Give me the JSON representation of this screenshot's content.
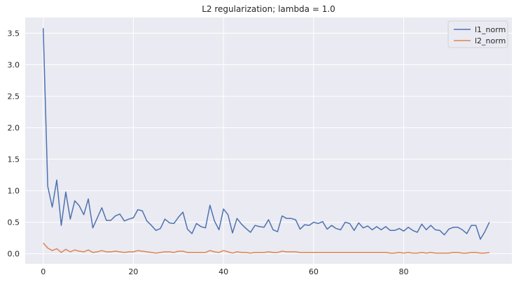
{
  "chart_data": {
    "type": "line",
    "title": "L2 regularization; lambda = 1.0",
    "xlabel": "",
    "ylabel": "",
    "xlim": [
      -4,
      104
    ],
    "ylim": [
      -0.16,
      3.75
    ],
    "x_ticks": [
      0,
      20,
      40,
      60,
      80
    ],
    "y_ticks": [
      0.0,
      0.5,
      1.0,
      1.5,
      2.0,
      2.5,
      3.0,
      3.5
    ],
    "x_tick_labels": [
      "0",
      "20",
      "40",
      "60",
      "80"
    ],
    "y_tick_labels": [
      "0.0",
      "0.5",
      "1.0",
      "1.5",
      "2.0",
      "2.5",
      "3.0",
      "3.5"
    ],
    "grid": true,
    "background": "#eaeaf2",
    "legend_position": "top-right",
    "x": [
      0,
      1,
      2,
      3,
      4,
      5,
      6,
      7,
      8,
      9,
      10,
      11,
      12,
      13,
      14,
      15,
      16,
      17,
      18,
      19,
      20,
      21,
      22,
      23,
      24,
      25,
      26,
      27,
      28,
      29,
      30,
      31,
      32,
      33,
      34,
      35,
      36,
      37,
      38,
      39,
      40,
      41,
      42,
      43,
      44,
      45,
      46,
      47,
      48,
      49,
      50,
      51,
      52,
      53,
      54,
      55,
      56,
      57,
      58,
      59,
      60,
      61,
      62,
      63,
      64,
      65,
      66,
      67,
      68,
      69,
      70,
      71,
      72,
      73,
      74,
      75,
      76,
      77,
      78,
      79,
      80,
      81,
      82,
      83,
      84,
      85,
      86,
      87,
      88,
      89,
      90,
      91,
      92,
      93,
      94,
      95,
      96,
      97,
      98,
      99
    ],
    "series": [
      {
        "name": "l1_norm",
        "color": "#4c72b0",
        "values": [
          3.58,
          1.07,
          0.74,
          1.17,
          0.45,
          0.98,
          0.55,
          0.84,
          0.76,
          0.62,
          0.87,
          0.41,
          0.57,
          0.73,
          0.53,
          0.53,
          0.6,
          0.63,
          0.52,
          0.55,
          0.57,
          0.7,
          0.68,
          0.52,
          0.45,
          0.37,
          0.4,
          0.55,
          0.49,
          0.48,
          0.58,
          0.66,
          0.39,
          0.32,
          0.48,
          0.43,
          0.41,
          0.77,
          0.52,
          0.38,
          0.71,
          0.62,
          0.33,
          0.56,
          0.47,
          0.4,
          0.34,
          0.45,
          0.43,
          0.42,
          0.54,
          0.38,
          0.35,
          0.6,
          0.56,
          0.56,
          0.54,
          0.39,
          0.46,
          0.45,
          0.5,
          0.48,
          0.51,
          0.39,
          0.45,
          0.4,
          0.38,
          0.5,
          0.48,
          0.37,
          0.49,
          0.41,
          0.44,
          0.38,
          0.43,
          0.38,
          0.43,
          0.37,
          0.37,
          0.4,
          0.36,
          0.42,
          0.37,
          0.34,
          0.47,
          0.38,
          0.45,
          0.38,
          0.37,
          0.3,
          0.39,
          0.42,
          0.42,
          0.38,
          0.32,
          0.45,
          0.45,
          0.23,
          0.35,
          0.5
        ]
      },
      {
        "name": "l2_norm",
        "color": "#dd8452",
        "values": [
          0.17,
          0.09,
          0.05,
          0.08,
          0.02,
          0.07,
          0.03,
          0.06,
          0.04,
          0.03,
          0.06,
          0.02,
          0.03,
          0.05,
          0.03,
          0.03,
          0.04,
          0.03,
          0.02,
          0.03,
          0.03,
          0.05,
          0.04,
          0.03,
          0.02,
          0.01,
          0.02,
          0.03,
          0.03,
          0.02,
          0.04,
          0.04,
          0.02,
          0.02,
          0.02,
          0.02,
          0.02,
          0.05,
          0.03,
          0.02,
          0.05,
          0.03,
          0.01,
          0.03,
          0.02,
          0.02,
          0.01,
          0.02,
          0.02,
          0.02,
          0.03,
          0.02,
          0.02,
          0.04,
          0.03,
          0.03,
          0.03,
          0.02,
          0.02,
          0.02,
          0.02,
          0.02,
          0.02,
          0.02,
          0.02,
          0.02,
          0.02,
          0.02,
          0.02,
          0.02,
          0.02,
          0.02,
          0.02,
          0.02,
          0.02,
          0.02,
          0.02,
          0.01,
          0.01,
          0.02,
          0.01,
          0.02,
          0.01,
          0.01,
          0.02,
          0.01,
          0.02,
          0.01,
          0.01,
          0.01,
          0.01,
          0.02,
          0.02,
          0.01,
          0.01,
          0.02,
          0.02,
          0.01,
          0.01,
          0.02
        ]
      }
    ]
  }
}
